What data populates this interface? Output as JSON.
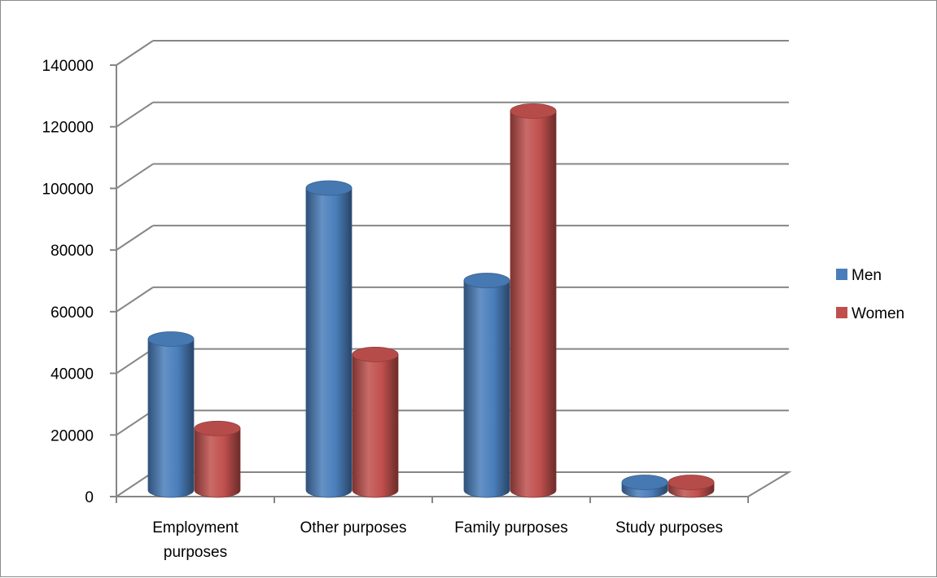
{
  "chart_data": {
    "type": "bar",
    "style": "3d-cylinder",
    "categories": [
      "Employment purposes",
      "Other purposes",
      "Family purposes",
      "Study purposes"
    ],
    "category_label_lines": [
      [
        "Employment",
        "purposes"
      ],
      [
        "Other purposes"
      ],
      [
        "Family purposes"
      ],
      [
        "Study purposes"
      ]
    ],
    "series": [
      {
        "name": "Men",
        "color": "#4a7ebb",
        "values": [
          49000,
          98000,
          68000,
          2500
        ]
      },
      {
        "name": "Women",
        "color": "#c0504d",
        "values": [
          20000,
          44000,
          123000,
          2500
        ]
      }
    ],
    "ylim": [
      0,
      140000
    ],
    "yticks": [
      "0",
      "20000",
      "40000",
      "60000",
      "80000",
      "100000",
      "120000",
      "140000"
    ],
    "grid": true,
    "legend_position": "right"
  }
}
